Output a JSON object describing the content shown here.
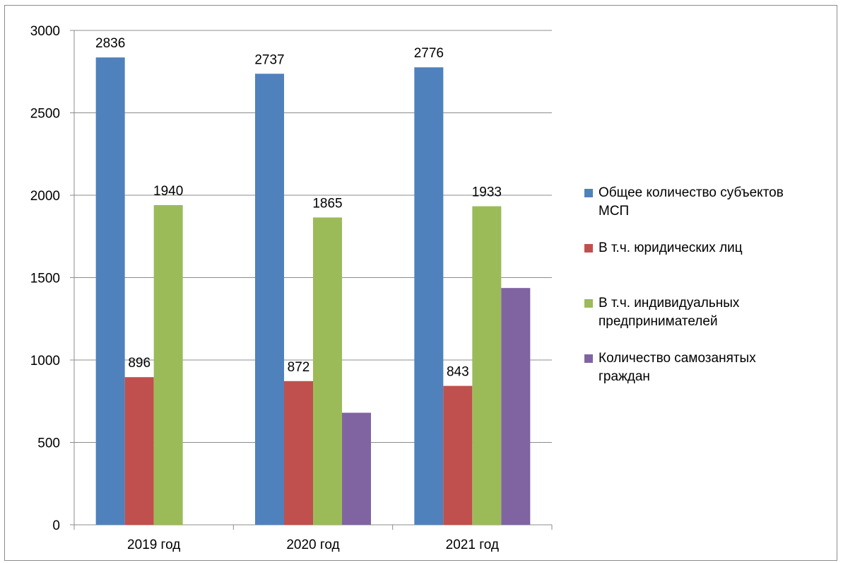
{
  "chart_data": {
    "type": "bar",
    "categories": [
      "2019 год",
      "2020 год",
      "2021 год"
    ],
    "series": [
      {
        "name": "Общее количество субъектов МСП",
        "color": "#4f81bd",
        "values": [
          2836,
          2737,
          2776
        ],
        "labels": [
          "2836",
          "2737",
          "2776"
        ]
      },
      {
        "name": "В т.ч. юридических лиц",
        "color": "#c0504d",
        "values": [
          896,
          872,
          843
        ],
        "labels": [
          "896",
          "872",
          "843"
        ]
      },
      {
        "name": "В т.ч. индивидуальных предпринимателей",
        "color": "#9bbb59",
        "values": [
          1940,
          1865,
          1933
        ],
        "labels": [
          "1940",
          "1865",
          "1933"
        ]
      },
      {
        "name": "Количество самозанятых граждан",
        "color": "#8064a2",
        "values": [
          null,
          680,
          1437
        ],
        "labels": [
          "",
          "",
          ""
        ]
      }
    ],
    "yticks": [
      "0",
      "500",
      "1000",
      "1500",
      "2000",
      "2500",
      "3000"
    ],
    "ylim": [
      0,
      3000
    ],
    "grid": true,
    "legend_position": "right"
  },
  "legend": {
    "items": [
      {
        "line1": "Общее количество субъектов",
        "line2": "МСП"
      },
      {
        "line1": "В т.ч. юридических лиц",
        "line2": ""
      },
      {
        "line1": "В т.ч. индивидуальных",
        "line2": "предпринимателей"
      },
      {
        "line1": "Количество самозанятых",
        "line2": "граждан"
      }
    ]
  }
}
